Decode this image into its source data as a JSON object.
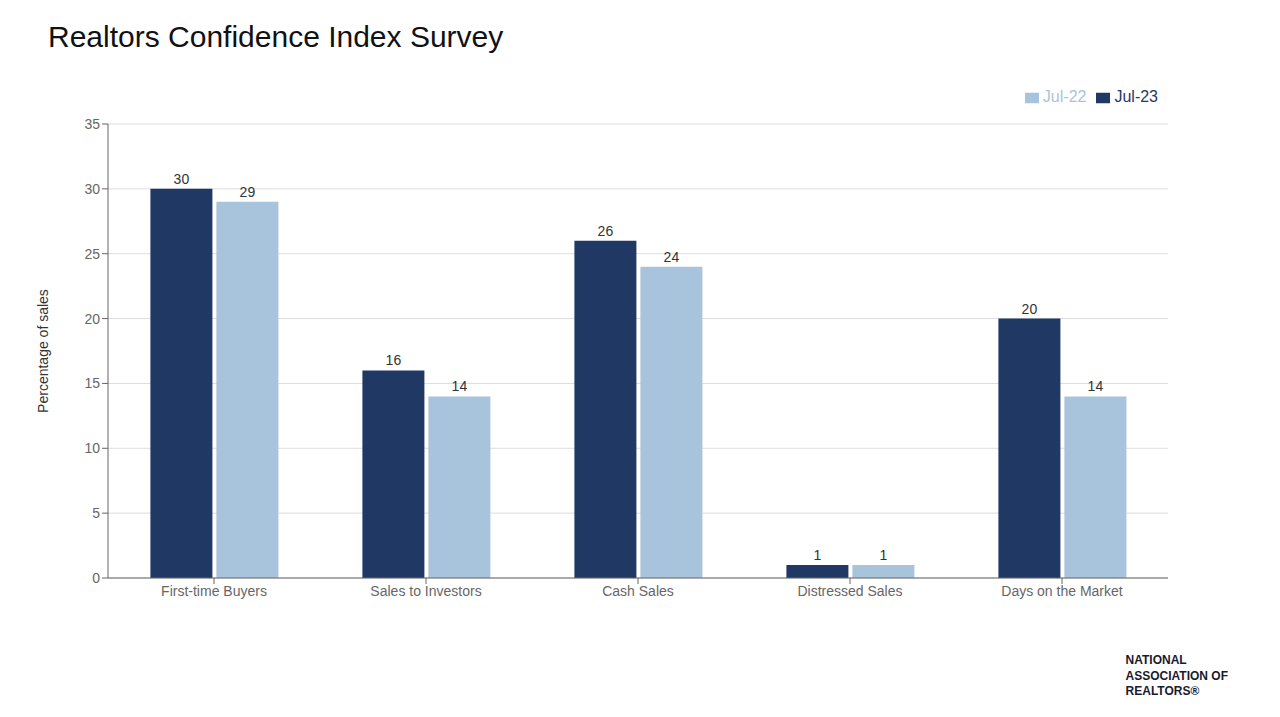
{
  "chart_data": {
    "type": "bar",
    "title": "Realtors Confidence Index Survey",
    "categories": [
      "First-time Buyers",
      "Sales to Investors",
      "Cash Sales",
      "Distressed Sales",
      "Days on the Market"
    ],
    "series": [
      {
        "name": "Jul-23",
        "color": "#1F3864",
        "values": [
          30,
          16,
          26,
          1,
          20
        ]
      },
      {
        "name": "Jul-22",
        "color": "#A8C4DC",
        "values": [
          29,
          14,
          24,
          1,
          14
        ]
      }
    ],
    "ylabel": "Percentage of sales",
    "ylim": [
      0,
      35
    ],
    "yticks": [
      0,
      5,
      10,
      15,
      20,
      25,
      30,
      35
    ],
    "grid": true,
    "legend": "upper right",
    "data_labels": true,
    "annotations": [
      "NATIONAL\nASSOCIATION OF\nREALTORS®"
    ]
  }
}
